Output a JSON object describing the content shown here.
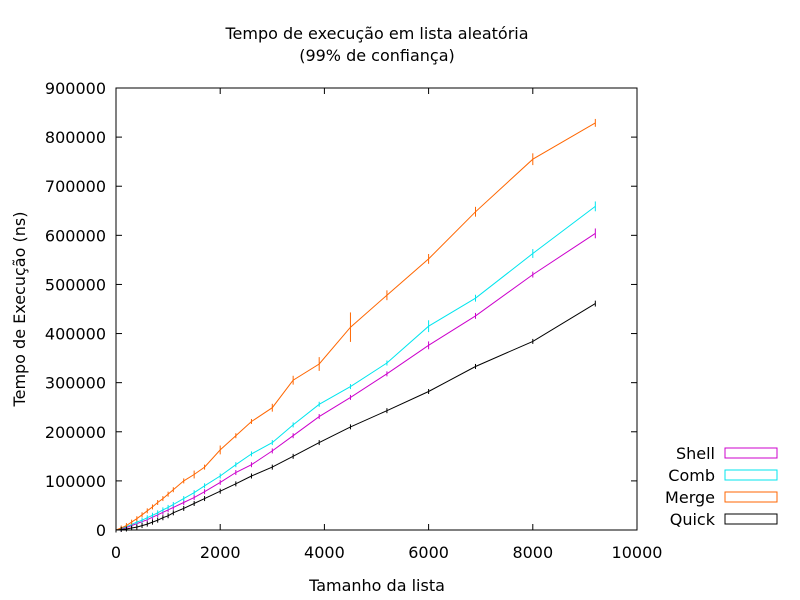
{
  "chart_data": {
    "type": "line",
    "title": "Tempo de execução em lista aleatória",
    "subtitle": "(99% de confiança)",
    "xlabel": "Tamanho da lista",
    "ylabel": "Tempo de Execução (ns)",
    "xlim": [
      0,
      10000
    ],
    "ylim": [
      0,
      900000
    ],
    "x_ticks": [
      0,
      2000,
      4000,
      6000,
      8000,
      10000
    ],
    "y_ticks": [
      0,
      100000,
      200000,
      300000,
      400000,
      500000,
      600000,
      700000,
      800000,
      900000
    ],
    "x_tick_labels": [
      "0",
      "2000",
      "4000",
      "6000",
      "8000",
      "10000"
    ],
    "y_tick_labels": [
      "0",
      "100000",
      "200000",
      "300000",
      "400000",
      "500000",
      "600000",
      "700000",
      "800000",
      "900000"
    ],
    "grid": false,
    "legend_position": "bottom-right outside",
    "series": [
      {
        "name": "Shell",
        "color": "#cc00cc",
        "points": [
          [
            0,
            0
          ],
          [
            100,
            2000
          ],
          [
            200,
            5000
          ],
          [
            300,
            9000
          ],
          [
            400,
            13000
          ],
          [
            500,
            17000
          ],
          [
            600,
            21000
          ],
          [
            700,
            26000
          ],
          [
            800,
            31000
          ],
          [
            900,
            36000
          ],
          [
            1000,
            41000
          ],
          [
            1100,
            46000
          ],
          [
            1300,
            56000
          ],
          [
            1500,
            66000
          ],
          [
            1700,
            78000
          ],
          [
            2000,
            97000
          ],
          [
            2300,
            117000
          ],
          [
            2600,
            133000
          ],
          [
            3000,
            161000
          ],
          [
            3400,
            192000
          ],
          [
            3900,
            231000
          ],
          [
            4500,
            270000
          ],
          [
            5200,
            318000
          ],
          [
            6000,
            376000
          ],
          [
            6900,
            436000
          ],
          [
            8000,
            520000
          ],
          [
            9200,
            604000
          ]
        ],
        "errors": [
          0,
          0,
          0,
          0,
          0,
          0,
          0,
          0,
          0,
          0,
          0,
          0,
          0,
          0,
          0,
          0,
          0,
          0,
          0,
          5000,
          5000,
          5000,
          5000,
          8000,
          6000,
          6000,
          10000
        ]
      },
      {
        "name": "Comb",
        "color": "#00e5ee",
        "points": [
          [
            0,
            0
          ],
          [
            100,
            3000
          ],
          [
            200,
            7000
          ],
          [
            300,
            11000
          ],
          [
            400,
            16000
          ],
          [
            500,
            20000
          ],
          [
            600,
            25000
          ],
          [
            700,
            30000
          ],
          [
            800,
            35000
          ],
          [
            900,
            41000
          ],
          [
            1000,
            46000
          ],
          [
            1100,
            52000
          ],
          [
            1300,
            64000
          ],
          [
            1500,
            76000
          ],
          [
            1700,
            90000
          ],
          [
            2000,
            110000
          ],
          [
            2300,
            133000
          ],
          [
            2600,
            155000
          ],
          [
            3000,
            178000
          ],
          [
            3400,
            214000
          ],
          [
            3900,
            256000
          ],
          [
            4500,
            292000
          ],
          [
            5200,
            340000
          ],
          [
            6000,
            415000
          ],
          [
            6900,
            472000
          ],
          [
            8000,
            563000
          ],
          [
            9200,
            659000
          ]
        ],
        "errors": [
          0,
          0,
          0,
          0,
          0,
          0,
          0,
          0,
          0,
          0,
          0,
          0,
          0,
          0,
          0,
          0,
          0,
          0,
          0,
          5000,
          5000,
          5000,
          5000,
          12000,
          7000,
          9000,
          10000
        ]
      },
      {
        "name": "Merge",
        "color": "#ff6600",
        "points": [
          [
            0,
            0
          ],
          [
            100,
            4000
          ],
          [
            200,
            9000
          ],
          [
            300,
            16000
          ],
          [
            400,
            23000
          ],
          [
            500,
            31000
          ],
          [
            600,
            39000
          ],
          [
            700,
            47000
          ],
          [
            800,
            56000
          ],
          [
            900,
            64000
          ],
          [
            1000,
            73000
          ],
          [
            1100,
            82000
          ],
          [
            1300,
            100000
          ],
          [
            1500,
            113000
          ],
          [
            1700,
            128000
          ],
          [
            2000,
            163000
          ],
          [
            2300,
            192000
          ],
          [
            2600,
            221000
          ],
          [
            3000,
            249000
          ],
          [
            3400,
            305000
          ],
          [
            3900,
            338000
          ],
          [
            4500,
            413000
          ],
          [
            5200,
            478000
          ],
          [
            6000,
            552000
          ],
          [
            6900,
            648000
          ],
          [
            8000,
            755000
          ],
          [
            9200,
            829000
          ]
        ],
        "errors": [
          0,
          0,
          0,
          0,
          0,
          0,
          0,
          0,
          0,
          0,
          0,
          0,
          0,
          8000,
          0,
          9000,
          5000,
          5000,
          8000,
          9000,
          14000,
          30000,
          10000,
          10000,
          10000,
          12000,
          8000
        ]
      },
      {
        "name": "Quick",
        "color": "#000000",
        "points": [
          [
            0,
            0
          ],
          [
            100,
            1000
          ],
          [
            200,
            2000
          ],
          [
            300,
            4000
          ],
          [
            400,
            6000
          ],
          [
            500,
            9000
          ],
          [
            600,
            12000
          ],
          [
            700,
            16000
          ],
          [
            800,
            20000
          ],
          [
            900,
            25000
          ],
          [
            1000,
            29000
          ],
          [
            1100,
            35000
          ],
          [
            1300,
            44000
          ],
          [
            1500,
            54000
          ],
          [
            1700,
            64000
          ],
          [
            2000,
            79000
          ],
          [
            2300,
            94000
          ],
          [
            2600,
            110000
          ],
          [
            3000,
            128000
          ],
          [
            3400,
            150000
          ],
          [
            3900,
            178000
          ],
          [
            4500,
            210000
          ],
          [
            5200,
            243000
          ],
          [
            6000,
            282000
          ],
          [
            6900,
            333000
          ],
          [
            8000,
            384000
          ],
          [
            9200,
            461000
          ]
        ],
        "errors": [
          0,
          0,
          0,
          0,
          0,
          0,
          0,
          0,
          0,
          0,
          0,
          5000,
          5000,
          5000,
          5000,
          5000,
          5000,
          5000,
          5000,
          5000,
          5000,
          5000,
          5000,
          5000,
          5000,
          5000,
          6000
        ]
      }
    ]
  }
}
